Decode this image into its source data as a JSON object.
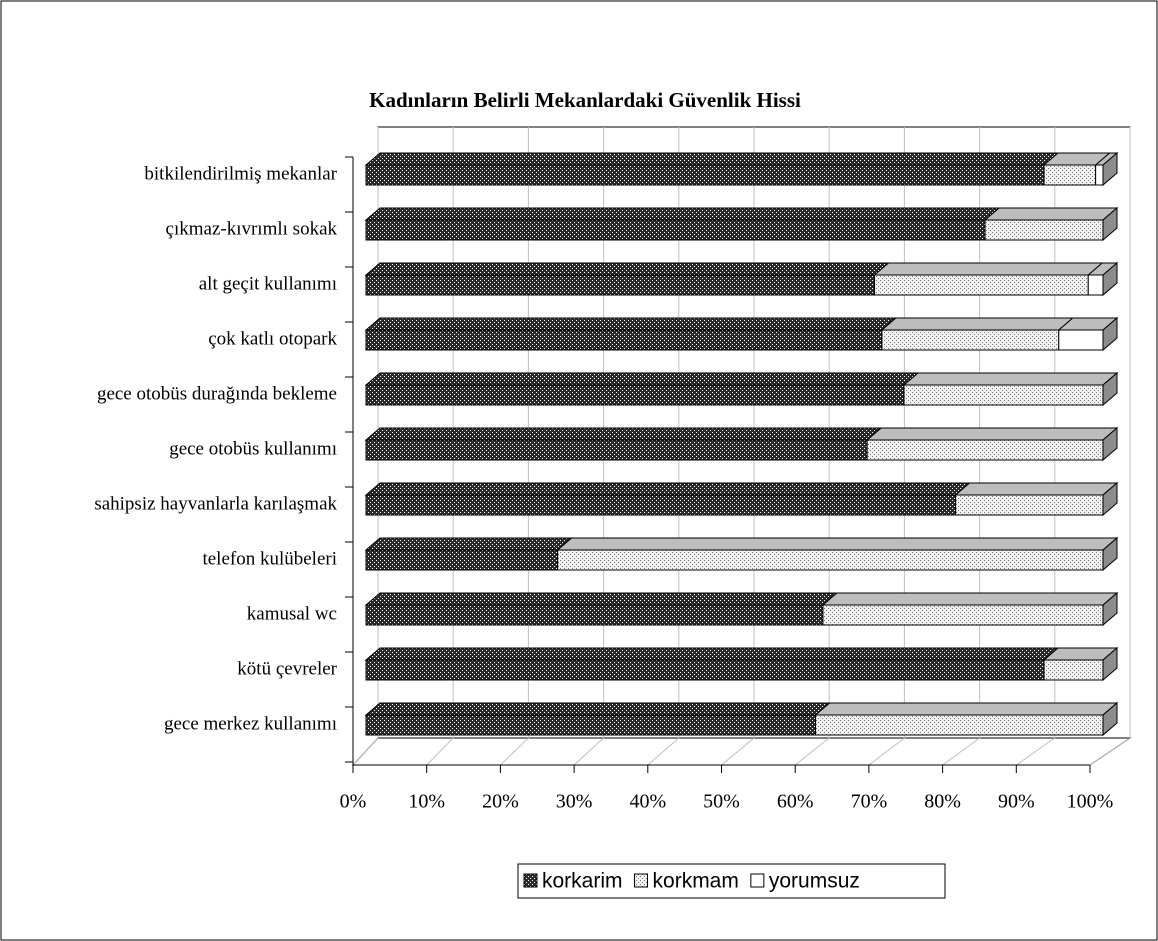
{
  "chart_data": {
    "type": "bar3d_stacked_horizontal",
    "title": "Kadınların  Belirli Mekanlardaki Güvenlik Hissi",
    "categories": [
      "bitkilendirilmiş mekanlar",
      "çıkmaz-kıvrımlı sokak",
      "alt geçit kullanımı",
      "çok katlı otopark",
      "gece otobüs durağında bekleme",
      "gece otobüs kullanımı",
      "sahipsiz hayvanlarla karılaşmak",
      "telefon kulübeleri",
      "kamusal wc",
      "kötü çevreler",
      "gece merkez kullanımı"
    ],
    "series": [
      {
        "name": "korkarim",
        "color": "#2a2a2a",
        "values": [
          92,
          84,
          69,
          70,
          73,
          68,
          80,
          26,
          62,
          92,
          61
        ]
      },
      {
        "name": "korkmam",
        "color": "#f0f0f0",
        "values": [
          7,
          16,
          29,
          24,
          27,
          32,
          20,
          74,
          38,
          8,
          39
        ]
      },
      {
        "name": "yorumsuz",
        "color": "#ffffff",
        "values": [
          1,
          0,
          2,
          6,
          0,
          0,
          0,
          0,
          0,
          0,
          0
        ]
      }
    ],
    "xlim": [
      0,
      100
    ],
    "xticks": [
      {
        "value": 0,
        "label": "0%"
      },
      {
        "value": 10,
        "label": "10%"
      },
      {
        "value": 20,
        "label": "20%"
      },
      {
        "value": 30,
        "label": "30%"
      },
      {
        "value": 40,
        "label": "40%"
      },
      {
        "value": 50,
        "label": "50%"
      },
      {
        "value": 60,
        "label": "60%"
      },
      {
        "value": 70,
        "label": "70%"
      },
      {
        "value": 80,
        "label": "80%"
      },
      {
        "value": 90,
        "label": "90%"
      },
      {
        "value": 100,
        "label": "100%"
      }
    ],
    "grid": true,
    "legend": "bottom"
  }
}
